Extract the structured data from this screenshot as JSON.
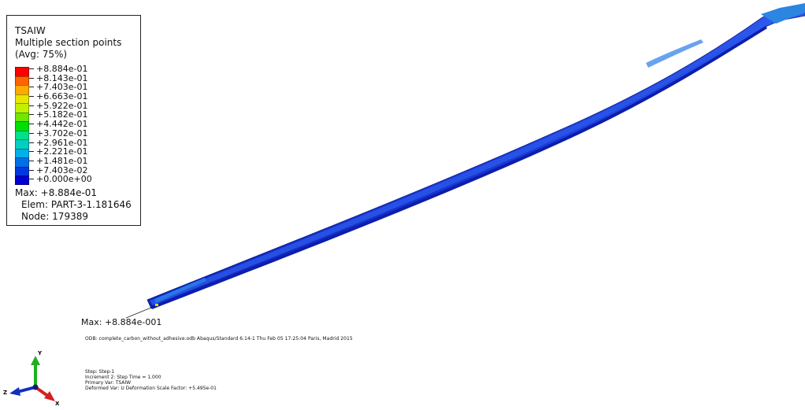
{
  "legend": {
    "title_lines": [
      "TSAIW",
      "Multiple section points",
      "(Avg: 75%)"
    ],
    "colors": [
      "#ff0000",
      "#ff6400",
      "#ffaa00",
      "#e8e600",
      "#c2f000",
      "#6ee800",
      "#00e000",
      "#00e08a",
      "#00d0c0",
      "#00b0e8",
      "#0070e8",
      "#0038e0",
      "#0000d0"
    ],
    "ticks": [
      "+8.884e-01",
      "+8.143e-01",
      "+7.403e-01",
      "+6.663e-01",
      "+5.922e-01",
      "+5.182e-01",
      "+4.442e-01",
      "+3.702e-01",
      "+2.961e-01",
      "+2.221e-01",
      "+1.481e-01",
      "+7.403e-02",
      "+0.000e+00"
    ],
    "max": "Max: +8.884e-01",
    "elem": "Elem: PART-3-1.181646",
    "node": "Node: 179389"
  },
  "model": {
    "max_marker": "Max: +8.884e-001",
    "base_color": "#1a3ad6",
    "highlight_color": "#2a7be8"
  },
  "info": {
    "odb": "ODB: complete_carbon_without_adhesive.odb    Abaqus/Standard 6.14-1    Thu Feb 05 17:25:04 Paris, Madrid 2015",
    "step": "Step: Step-1",
    "increment": "Increment      2: Step Time =     1.000",
    "primary_var": "Primary Var: TSAIW",
    "deformed_var": "Deformed Var: U   Deformation Scale Factor: +5.495e-01"
  },
  "triad": {
    "x_label": "X",
    "y_label": "Y",
    "z_label": "Z",
    "x_color": "#d62020",
    "y_color": "#1eb01e",
    "z_color": "#1030c0"
  }
}
